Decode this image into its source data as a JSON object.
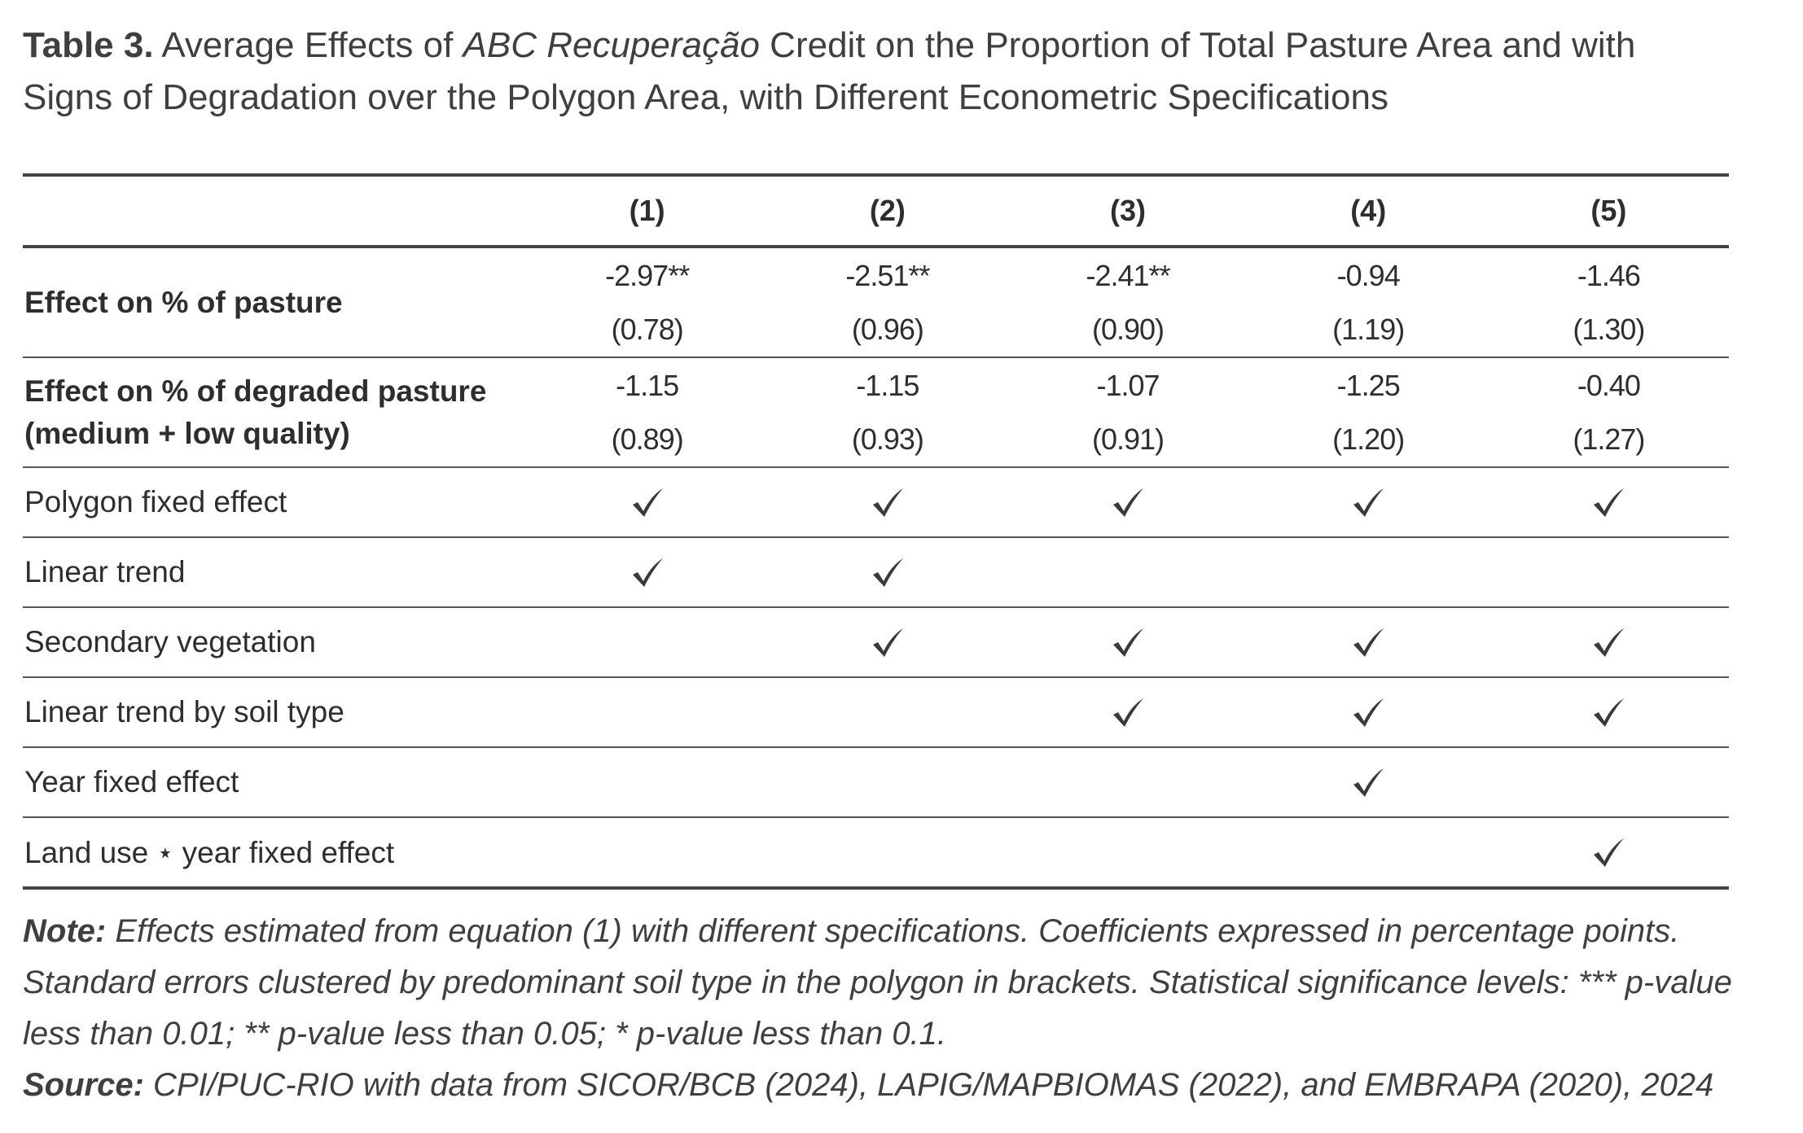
{
  "caption": {
    "label": "Table 3.",
    "text_before": " Average Effects of ",
    "emphasis": "ABC Recuperação",
    "text_after": " Credit on the Proportion of Total Pasture Area and with Signs of Degradation over the Polygon Area, with Different Econometric Specifications"
  },
  "table": {
    "columns": [
      "(1)",
      "(2)",
      "(3)",
      "(4)",
      "(5)"
    ],
    "effect_rows": [
      {
        "label": "Effect on % of pasture",
        "coefficients": [
          "-2.97**",
          "-2.51**",
          "-2.41**",
          "-0.94",
          "-1.46"
        ],
        "std_errors": [
          "(0.78)",
          "(0.96)",
          "(0.90)",
          "(1.19)",
          "(1.30)"
        ]
      },
      {
        "label_line1": "Effect on % of degraded pasture",
        "label_line2": "(medium + low quality)",
        "coefficients": [
          "-1.15",
          "-1.15",
          "-1.07",
          "-1.25",
          "-0.40"
        ],
        "std_errors": [
          "(0.89)",
          "(0.93)",
          "(0.91)",
          "(1.20)",
          "(1.27)"
        ]
      }
    ],
    "spec_rows": [
      {
        "label": "Polygon fixed effect",
        "checks": [
          true,
          true,
          true,
          true,
          true
        ]
      },
      {
        "label": "Linear trend",
        "checks": [
          true,
          true,
          false,
          false,
          false
        ]
      },
      {
        "label": "Secondary vegetation",
        "checks": [
          false,
          true,
          true,
          true,
          true
        ]
      },
      {
        "label": "Linear trend by soil type",
        "checks": [
          false,
          false,
          true,
          true,
          true
        ]
      },
      {
        "label": "Year fixed effect",
        "checks": [
          false,
          false,
          false,
          true,
          false
        ]
      },
      {
        "label": "Land use ⋆ year fixed effect",
        "checks": [
          false,
          false,
          false,
          false,
          true
        ]
      }
    ],
    "check_icon": "checkmark-icon",
    "check_color": "#3a3a3a"
  },
  "notes": {
    "note_label": "Note:",
    "note_text": " Effects estimated from equation (1) with different specifications. Coefficients expressed in percentage points. Standard errors clustered by predominant soil type in the polygon in brackets. Statistical significance levels: *** p-value less than 0.01; ** p-value less than 0.05; * p-value less than 0.1.",
    "source_label": "Source:",
    "source_text": " CPI/PUC-RIO with data from SICOR/BCB (2024), LAPIG/MAPBIOMAS (2022), and EMBRAPA (2020), 2024"
  }
}
